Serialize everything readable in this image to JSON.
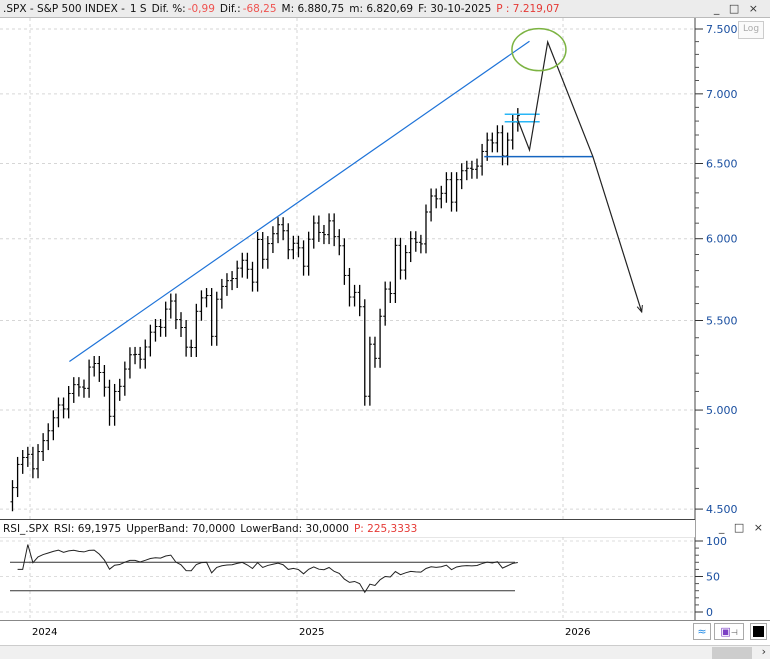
{
  "header": {
    "symbol": ".SPX - S&P 500 INDEX -",
    "period": "1 S",
    "dif_pct_label": "Dif. %:",
    "dif_pct": "-0,99",
    "dif_label": "Dif.:",
    "dif": "-68,25",
    "max": "M: 6.880,75",
    "min": "m: 6.820,69",
    "date": "F: 30-10-2025",
    "price": "P : 7.219,07",
    "log_button": "Log"
  },
  "rsi_header": {
    "name": "RSI_.SPX",
    "rsi": "RSI: 69,1975",
    "upper": "UpperBand: 70,0000",
    "lower": "LowerBand: 30,0000",
    "p": "P: 225,3333"
  },
  "window_controls": "_ □ ×",
  "colors": {
    "trendline": "#1e73d8",
    "support": "#1565c0",
    "cyan": "#29b6f6",
    "ellipse": "#7cb342",
    "negative": "#e53935",
    "bars": "#000000"
  },
  "bottom_icons": [
    "wave-icon",
    "save-icon",
    "pin-icon",
    "color-swatch-icon"
  ],
  "chart_data": [
    {
      "type": "ohlc",
      "scale": "log",
      "ylim": [
        4500,
        7600
      ],
      "yticks": [
        7500,
        7000,
        6500,
        6000,
        5500,
        5000,
        4500
      ],
      "ytick_labels": [
        "7.500",
        "7.000",
        "6.500",
        "6.000",
        "5.500",
        "5.000",
        "4.500"
      ],
      "xtick_labels": [
        "2024",
        "2025",
        "2026"
      ],
      "xticks": [
        "2024-01-01",
        "2025-01-01",
        "2026-01-01"
      ],
      "grid": true,
      "dates": [
        "2023-12-08",
        "2023-12-15",
        "2023-12-22",
        "2023-12-29",
        "2024-01-05",
        "2024-01-12",
        "2024-01-19",
        "2024-01-26",
        "2024-02-02",
        "2024-02-09",
        "2024-02-16",
        "2024-02-23",
        "2024-03-01",
        "2024-03-08",
        "2024-03-15",
        "2024-03-22",
        "2024-03-29",
        "2024-04-05",
        "2024-04-12",
        "2024-04-19",
        "2024-04-26",
        "2024-05-03",
        "2024-05-10",
        "2024-05-17",
        "2024-05-24",
        "2024-05-31",
        "2024-06-07",
        "2024-06-14",
        "2024-06-21",
        "2024-06-28",
        "2024-07-05",
        "2024-07-12",
        "2024-07-19",
        "2024-07-26",
        "2024-08-02",
        "2024-08-09",
        "2024-08-16",
        "2024-08-23",
        "2024-08-30",
        "2024-09-06",
        "2024-09-13",
        "2024-09-20",
        "2024-09-27",
        "2024-10-04",
        "2024-10-11",
        "2024-10-18",
        "2024-10-25",
        "2024-11-01",
        "2024-11-08",
        "2024-11-15",
        "2024-11-22",
        "2024-11-29",
        "2024-12-06",
        "2024-12-13",
        "2024-12-20",
        "2024-12-27",
        "2025-01-03",
        "2025-01-10",
        "2025-01-17",
        "2025-01-24",
        "2025-01-31",
        "2025-02-07",
        "2025-02-14",
        "2025-02-21",
        "2025-02-28",
        "2025-03-07",
        "2025-03-14",
        "2025-03-21",
        "2025-03-28",
        "2025-04-04",
        "2025-04-11",
        "2025-04-18",
        "2025-04-25",
        "2025-05-02",
        "2025-05-09",
        "2025-05-16",
        "2025-05-23",
        "2025-05-30",
        "2025-06-06",
        "2025-06-13",
        "2025-06-20",
        "2025-06-27",
        "2025-07-04",
        "2025-07-11",
        "2025-07-18",
        "2025-07-25",
        "2025-08-01",
        "2025-08-08",
        "2025-08-15",
        "2025-08-22",
        "2025-08-29",
        "2025-09-05",
        "2025-09-12",
        "2025-09-19",
        "2025-09-26",
        "2025-10-03",
        "2025-10-10",
        "2025-10-17",
        "2025-10-24",
        "2025-10-31"
      ],
      "close": [
        4604,
        4719,
        4754,
        4770,
        4697,
        4784,
        4840,
        4891,
        4959,
        5027,
        5006,
        5089,
        5137,
        5124,
        5117,
        5234,
        5254,
        5204,
        5123,
        4967,
        5100,
        5128,
        5223,
        5303,
        5305,
        5278,
        5347,
        5432,
        5465,
        5460,
        5567,
        5615,
        5505,
        5459,
        5346,
        5344,
        5554,
        5634,
        5648,
        5408,
        5626,
        5703,
        5738,
        5751,
        5815,
        5864,
        5808,
        5729,
        5995,
        5870,
        5969,
        6032,
        6090,
        6051,
        5930,
        5971,
        5942,
        5827,
        5997,
        6101,
        6040,
        6026,
        6115,
        6013,
        5955,
        5770,
        5639,
        5667,
        5581,
        5074,
        5363,
        5283,
        5525,
        5687,
        5660,
        5958,
        5803,
        5912,
        6000,
        5977,
        5967,
        6173,
        6279,
        6260,
        6297,
        6389,
        6238,
        6389,
        6450,
        6467,
        6460,
        6482,
        6584,
        6664,
        6644,
        6716,
        6553,
        6664,
        6792,
        6840
      ],
      "drawings": [
        {
          "kind": "trendline",
          "from": [
            "2024-02-24",
            5265
          ],
          "to": [
            "2025-11-16",
            7403
          ]
        },
        {
          "kind": "horizontal",
          "from": [
            "2025-09-15",
            6548
          ],
          "to": [
            "2026-02-11",
            6548
          ]
        },
        {
          "kind": "horizontal",
          "from": [
            "2025-10-13",
            6850
          ],
          "to": [
            "2025-11-30",
            6850
          ]
        },
        {
          "kind": "horizontal",
          "from": [
            "2025-10-13",
            6795
          ],
          "to": [
            "2025-11-30",
            6795
          ]
        },
        {
          "kind": "path",
          "points": [
            [
              "2025-10-30",
              6823
            ],
            [
              "2025-11-16",
              6594
            ],
            [
              "2025-12-11",
              7397
            ],
            [
              "2026-02-11",
              6548
            ],
            [
              "2026-04-19",
              5550
            ]
          ]
        },
        {
          "kind": "ellipse",
          "center": [
            "2025-11-29",
            7337
          ]
        }
      ]
    },
    {
      "type": "line",
      "name": "RSI",
      "period": 14,
      "ylim": [
        0,
        100
      ],
      "yticks": [
        100,
        50,
        0
      ],
      "ytick_labels": [
        "100",
        "50",
        "0"
      ],
      "bands": [
        70,
        30
      ]
    }
  ]
}
